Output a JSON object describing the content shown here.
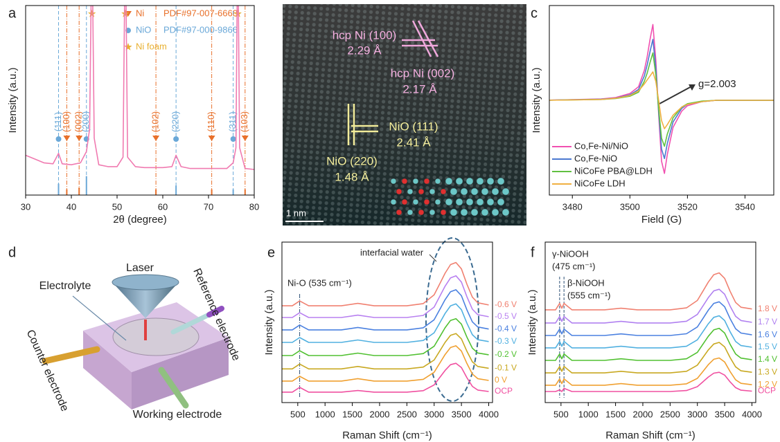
{
  "chart_data": [
    {
      "panel": "a",
      "type": "line",
      "xlabel": "2θ (degree)",
      "ylabel": "Intensity (a.u.)",
      "xlim": [
        30,
        80
      ],
      "ylim": [
        0,
        100
      ],
      "xticks": [
        30,
        40,
        50,
        60,
        70,
        80
      ],
      "x": [
        30,
        32,
        34,
        36,
        37.2,
        38,
        40,
        42,
        43.3,
        44,
        44.5,
        45,
        46,
        48,
        50,
        51.3,
        51.8,
        52.3,
        54,
        56,
        58,
        60,
        62,
        62.9,
        64,
        66,
        68,
        70,
        72,
        74,
        75.4,
        76,
        76.4,
        76.8,
        78,
        80
      ],
      "series": [
        {
          "color": "#f07ab0",
          "values": [
            21,
            19,
            17,
            16.5,
            22,
            16.5,
            16,
            17,
            23,
            35,
            140,
            30,
            16,
            15,
            15,
            20,
            140,
            20,
            15,
            14.5,
            14.5,
            14.5,
            15,
            21,
            15,
            14,
            14,
            14,
            14,
            14,
            17,
            25,
            140,
            25,
            14,
            13.5
          ]
        }
      ],
      "references": [
        {
          "name": "Ni",
          "label": "PDF#97-007-6668",
          "color": "#e8702a",
          "marker": "triangle",
          "positions": [
            39.0,
            41.7,
            58.5,
            70.7,
            78.0
          ],
          "heights": [
            3,
            4,
            3,
            3,
            3
          ],
          "hkl": [
            "(100)",
            "(002)",
            "(102)",
            "(110)",
            "(103)"
          ]
        },
        {
          "name": "NiO",
          "label": "PDF#97-000-9866",
          "color": "#6aa8d8",
          "marker": "circle",
          "positions": [
            37.2,
            43.3,
            62.9,
            75.4
          ],
          "heights": [
            6,
            10,
            5,
            3
          ],
          "hkl": [
            "(111)",
            "(200)",
            "(220)",
            "(311)"
          ]
        }
      ],
      "ni_foam": {
        "name": "Ni foam",
        "color": "#e8b030",
        "positions": [
          44.5,
          51.8,
          76.4
        ]
      }
    },
    {
      "panel": "c",
      "type": "line",
      "xlabel": "Field (G)",
      "ylabel": "Intensity (a.u.)",
      "xlim": [
        3472,
        3550
      ],
      "ylim": [
        -70,
        70
      ],
      "xticks": [
        3480,
        3500,
        3520,
        3540
      ],
      "legend": "lower left",
      "annotation": "g=2.003",
      "x": [
        3470,
        3480,
        3490,
        3495,
        3500,
        3503,
        3505,
        3506,
        3507,
        3508,
        3509,
        3510,
        3511,
        3512,
        3513,
        3515,
        3518,
        3520,
        3525,
        3530,
        3540,
        3550
      ],
      "series": [
        {
          "name": "Co,Fe-Ni/NiO",
          "color": "#f050b0",
          "values": [
            0,
            0.5,
            1,
            2,
            5,
            10,
            22,
            32,
            45,
            56,
            30,
            -10,
            -45,
            -54,
            -40,
            -20,
            -8,
            -4,
            -1,
            0,
            0,
            0
          ]
        },
        {
          "name": "Co,Fe-NiO",
          "color": "#4a78d0",
          "values": [
            0,
            0.4,
            0.8,
            1.6,
            4,
            8,
            18,
            26,
            36,
            45,
            24,
            -8,
            -36,
            -43,
            -32,
            -16,
            -6,
            -3,
            -1,
            0,
            0,
            0
          ]
        },
        {
          "name": "NiCoFe PBA@LDH",
          "color": "#60c040",
          "values": [
            0,
            0.3,
            0.6,
            1.3,
            3,
            6,
            14,
            20,
            28,
            35,
            19,
            -6,
            -28,
            -34,
            -25,
            -13,
            -5,
            -2.5,
            -0.6,
            0,
            0,
            0
          ]
        },
        {
          "name": "NiCoFe LDH",
          "color": "#f0b040",
          "values": [
            0,
            0.3,
            0.6,
            1.5,
            3.5,
            7,
            12,
            15,
            18,
            21,
            14,
            0,
            -15,
            -21,
            -18,
            -11,
            -5,
            -3,
            -1,
            0,
            0,
            0
          ]
        }
      ]
    },
    {
      "panel": "e",
      "type": "line",
      "xlabel": "Raman Shift (cm⁻¹)",
      "ylabel": "Intensity (a.u.)",
      "xlim": [
        210,
        4070
      ],
      "ylim": [
        0,
        100
      ],
      "xticks": [
        500,
        1000,
        1500,
        2000,
        2500,
        3000,
        3500,
        4000
      ],
      "legend": "end",
      "annotations": [
        {
          "text": "Ni-O (535 cm⁻¹)",
          "x": 535
        }
      ],
      "region_label": "interfacial water",
      "x": [
        200,
        400,
        535,
        700,
        1000,
        1300,
        1600,
        1900,
        2200,
        2500,
        2800,
        3000,
        3100,
        3200,
        3300,
        3400,
        3500,
        3600,
        3700,
        3800,
        4000
      ],
      "series": [
        {
          "name": "-0.6 V",
          "color": "#f08070",
          "values": [
            60.3,
            60.3,
            63.3,
            60.3,
            60.3,
            60.3,
            61.8,
            60.3,
            60.3,
            60.3,
            61.7,
            67.1,
            73.8,
            80.6,
            86,
            87.3,
            83.3,
            73.8,
            65.7,
            62.2,
            60.8
          ]
        },
        {
          "name": "-0.5 V",
          "color": "#b880f0",
          "values": [
            53,
            53,
            56,
            53,
            53,
            53,
            54.5,
            53,
            53,
            53,
            54.3,
            59.5,
            66,
            72.5,
            77.7,
            79,
            75.1,
            66,
            58.2,
            54.8,
            53.5
          ]
        },
        {
          "name": "-0.4 V",
          "color": "#4a80e0",
          "values": [
            45.3,
            45.3,
            48.3,
            45.3,
            45.3,
            45.3,
            46.8,
            45.3,
            45.3,
            45.3,
            46.6,
            51.6,
            57.8,
            64.1,
            69.1,
            70.3,
            66.6,
            57.8,
            50.3,
            47.1,
            45.8
          ]
        },
        {
          "name": "-0.3 V",
          "color": "#50b0e0",
          "values": [
            37.5,
            37.5,
            40.5,
            37.5,
            37.5,
            37.5,
            39,
            37.5,
            37.5,
            37.5,
            38.7,
            43.5,
            49.5,
            55.5,
            60.3,
            61.5,
            57.9,
            49.5,
            42.3,
            39.2,
            38
          ]
        },
        {
          "name": "-0.2 V",
          "color": "#50c030",
          "values": [
            29.3,
            29.3,
            32.3,
            29.3,
            29.3,
            29.3,
            30.8,
            29.3,
            29.3,
            29.3,
            30.5,
            35.1,
            40.8,
            46.6,
            51.2,
            52.3,
            48.9,
            40.8,
            33.9,
            30.9,
            29.8
          ]
        },
        {
          "name": "-0.1 V",
          "color": "#c8a820",
          "values": [
            21,
            21,
            24,
            21,
            21,
            21,
            22.5,
            21,
            21,
            21,
            22.1,
            26.5,
            32,
            37.5,
            41.9,
            43,
            39.7,
            32,
            25.4,
            22.5,
            21.4
          ]
        },
        {
          "name": "0 V",
          "color": "#f0a030",
          "values": [
            13.4,
            13.4,
            16.4,
            13.4,
            13.4,
            13.4,
            14.9,
            13.4,
            13.4,
            13.4,
            14.5,
            18.9,
            24.4,
            29.9,
            34.3,
            35.4,
            32.1,
            24.4,
            17.8,
            14.9,
            13.8
          ]
        },
        {
          "name": "OCP",
          "color": "#f050a0",
          "values": [
            6.5,
            6.5,
            9.5,
            6.5,
            6.5,
            6.5,
            7.5,
            6.5,
            6.5,
            6.5,
            7.4,
            11,
            15.5,
            20,
            23.6,
            24.5,
            21.8,
            15.5,
            10.1,
            7.8,
            6.9
          ]
        }
      ]
    },
    {
      "panel": "f",
      "type": "line",
      "xlabel": "Raman Shift (cm⁻¹)",
      "ylabel": "Intensity (a.u.)",
      "xlim": [
        210,
        4070
      ],
      "ylim": [
        0,
        100
      ],
      "xticks": [
        500,
        1000,
        1500,
        2000,
        2500,
        3000,
        3500,
        4000
      ],
      "legend": "end",
      "annotations": [
        {
          "text": "γ-NiOOH",
          "sub": "(475 cm⁻¹)",
          "x": 475
        },
        {
          "text": "β-NiOOH",
          "sub": "(555 cm⁻¹)",
          "x": 555
        }
      ],
      "x": [
        200,
        400,
        475,
        515,
        555,
        700,
        1000,
        1300,
        1600,
        1900,
        2200,
        2500,
        2800,
        3000,
        3100,
        3200,
        3300,
        3400,
        3500,
        3600,
        3700,
        3800,
        4000
      ],
      "series": [
        {
          "name": "1.8 V",
          "color": "#f08070",
          "values": [
            57.8,
            57.8,
            61.8,
            58.8,
            61.8,
            57.8,
            57.8,
            57.8,
            58.8,
            57.8,
            57.8,
            57.8,
            59,
            63.6,
            69.3,
            75.1,
            79.7,
            80.8,
            77.4,
            69.3,
            62.4,
            59.4,
            58.3
          ]
        },
        {
          "name": "1.7 V",
          "color": "#b080f0",
          "values": [
            49.6,
            49.6,
            53.6,
            50.6,
            53.6,
            49.6,
            49.6,
            49.6,
            50.6,
            49.6,
            49.6,
            49.6,
            50.7,
            54.9,
            60.1,
            65.4,
            69.6,
            70.6,
            67.5,
            60.1,
            53.8,
            51.1,
            50
          ]
        },
        {
          "name": "1.6 V",
          "color": "#4a80e0",
          "values": [
            41.8,
            41.8,
            45.8,
            42.8,
            45.8,
            41.8,
            41.8,
            41.8,
            42.8,
            41.8,
            41.8,
            41.8,
            42.9,
            47.1,
            52.3,
            57.6,
            61.8,
            62.8,
            59.7,
            52.3,
            46,
            43.3,
            42.2
          ]
        },
        {
          "name": "1.5 V",
          "color": "#50b0e0",
          "values": [
            34.1,
            34.1,
            38.1,
            35.1,
            38.1,
            34.1,
            34.1,
            34.1,
            35.1,
            34.1,
            34.1,
            34.1,
            35.1,
            39.1,
            44.1,
            49.1,
            53.1,
            54.1,
            51.1,
            44.1,
            38.1,
            35.5,
            34.5
          ]
        },
        {
          "name": "1.4 V",
          "color": "#50c030",
          "values": [
            26.3,
            26.3,
            30.3,
            27.3,
            30.3,
            26.3,
            26.3,
            26.3,
            27.3,
            26.3,
            26.3,
            26.3,
            27.3,
            31.3,
            36.3,
            41.3,
            45.3,
            46.3,
            43.3,
            36.3,
            30.3,
            27.7,
            26.7
          ]
        },
        {
          "name": "1.3 V",
          "color": "#c8a820",
          "values": [
            18.5,
            18.5,
            22.5,
            19.5,
            22.5,
            18.5,
            18.5,
            18.5,
            19.5,
            18.5,
            18.5,
            18.5,
            19.5,
            23.3,
            28,
            32.8,
            36.5,
            37.5,
            34.7,
            28,
            22.3,
            19.8,
            18.9
          ]
        },
        {
          "name": "1.2 V",
          "color": "#f0a030",
          "values": [
            10.8,
            10.8,
            14.8,
            11.8,
            14.8,
            10.8,
            10.8,
            10.8,
            11.8,
            10.8,
            10.8,
            10.8,
            11.7,
            15.1,
            19.3,
            23.6,
            27,
            27.8,
            25.3,
            19.3,
            14.2,
            12,
            11.1
          ]
        },
        {
          "name": "OCP",
          "color": "#f050a0",
          "values": [
            6.9,
            6.9,
            7.9,
            6.9,
            8.9,
            6.9,
            6.9,
            6.9,
            6.9,
            6.9,
            6.9,
            6.9,
            7.5,
            9.9,
            12.9,
            15.9,
            18.3,
            18.9,
            17.1,
            12.9,
            9.3,
            7.7,
            7.1
          ]
        }
      ]
    }
  ],
  "tem_image": {
    "panel": "b",
    "ni_100": "hcp Ni (100)",
    "ni_100_d": "2.29 Å",
    "ni_002": "hcp Ni (002)",
    "ni_002_d": "2.17 Å",
    "nio_111": "NiO (111)",
    "nio_111_d": "2.41 Å",
    "nio_220": "NiO (220)",
    "nio_220_d": "1.48 Å",
    "scale_bar": "1 nm"
  },
  "schematic": {
    "panel": "d",
    "laser": "Laser",
    "electrolyte": "Electrolyte",
    "reference": "Reference electrode",
    "counter": "Counter electrode",
    "working": "Working electrode"
  }
}
